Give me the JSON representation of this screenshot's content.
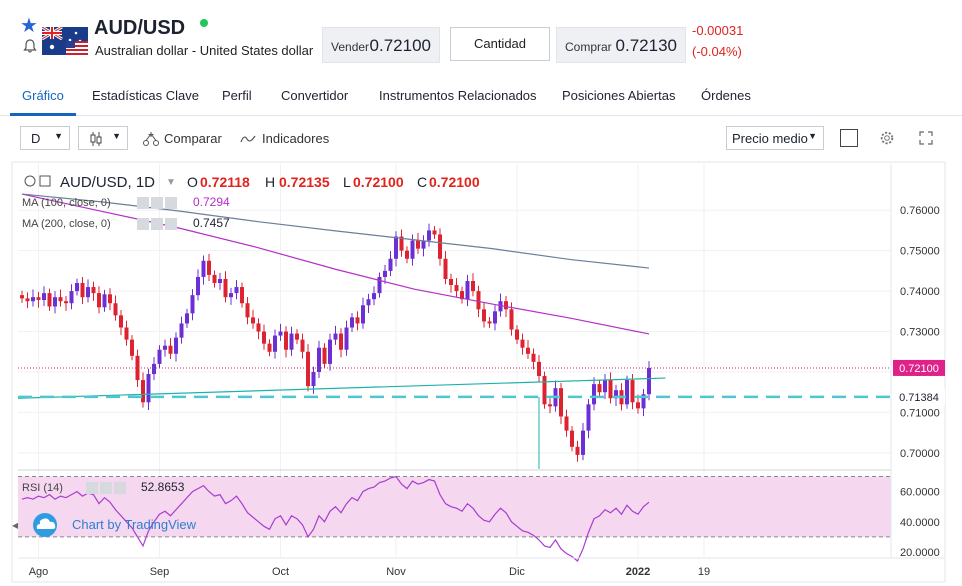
{
  "header": {
    "symbol": "AUD/USD",
    "description": "Australian dollar - United States dollar",
    "sell_label": "Vender",
    "sell_price": "0.72100",
    "quantity_label": "Cantidad",
    "buy_label": "Comprar",
    "buy_price": "0.72130",
    "change_abs": "-0.00031",
    "change_pct": "(-0.04%)",
    "icons": [
      "star-icon",
      "bell-icon",
      "australia-flag-icon",
      "live-status-dot"
    ]
  },
  "tabs": [
    {
      "label": "Gráfico",
      "active": true
    },
    {
      "label": "Estadísticas Clave"
    },
    {
      "label": "Perfil"
    },
    {
      "label": "Convertidor"
    },
    {
      "label": "Instrumentos Relacionados"
    },
    {
      "label": "Posiciones Abiertas"
    },
    {
      "label": "Órdenes"
    }
  ],
  "toolbar": {
    "interval": "D",
    "compare_label": "Comparar",
    "indicators_label": "Indicadores",
    "price_type": "Precio medio",
    "icons": [
      "candles-icon",
      "compare-icon",
      "indicators-icon",
      "gear-icon",
      "fullscreen-icon"
    ]
  },
  "legend": {
    "symbol": "AUD/USD, 1D",
    "o_label": "O",
    "o_val": "0.72118",
    "h_label": "H",
    "h_val": "0.72135",
    "l_label": "L",
    "l_val": "0.72100",
    "c_label": "C",
    "c_val": "0.72100",
    "ma100_label": "MA (100, close, 0)",
    "ma100_val": "0.7294",
    "ma200_label": "MA (200, close, 0)",
    "ma200_val": "0.7457",
    "rsi_label": "RSI (14)",
    "rsi_val": "52.8653"
  },
  "branding": "Chart by TradingView",
  "chart_data": {
    "type": "candlestick",
    "price_axis": [
      "0.76000",
      "0.75000",
      "0.74000",
      "0.73000",
      "0.72000",
      "0.71000",
      "0.70000"
    ],
    "price_ticks": [
      0.76,
      0.75,
      0.74,
      0.73,
      0.72,
      0.71,
      0.7
    ],
    "price_range": [
      0.697,
      0.765
    ],
    "last_price_label": "0.72100",
    "last_price": 0.721,
    "horizontal_line_label": "0.71384",
    "horizontal_line": 0.71384,
    "rsi_axis": [
      "60.0000",
      "40.0000",
      "20.0000"
    ],
    "rsi_ticks": [
      60,
      40,
      20
    ],
    "rsi_range": [
      16,
      73
    ],
    "rsi_bands": [
      70,
      30
    ],
    "time_axis": [
      {
        "label": "Ago",
        "i": 3
      },
      {
        "label": "Sep",
        "i": 25
      },
      {
        "label": "Oct",
        "i": 47
      },
      {
        "label": "Nov",
        "i": 68
      },
      {
        "label": "Dic",
        "i": 90
      },
      {
        "label": "2022",
        "i": 112
      },
      {
        "label": "19",
        "i": 124
      }
    ],
    "closes": [
      0.7382,
      0.7375,
      0.7385,
      0.7378,
      0.7395,
      0.7362,
      0.7385,
      0.7375,
      0.737,
      0.74,
      0.742,
      0.7385,
      0.741,
      0.7395,
      0.736,
      0.7392,
      0.737,
      0.734,
      0.731,
      0.728,
      0.724,
      0.718,
      0.7125,
      0.7195,
      0.722,
      0.7255,
      0.7265,
      0.7245,
      0.7285,
      0.732,
      0.7345,
      0.739,
      0.7435,
      0.7475,
      0.744,
      0.742,
      0.743,
      0.7385,
      0.7395,
      0.741,
      0.737,
      0.7335,
      0.732,
      0.73,
      0.727,
      0.725,
      0.729,
      0.73,
      0.7255,
      0.7295,
      0.728,
      0.725,
      0.7165,
      0.72,
      0.726,
      0.722,
      0.728,
      0.7295,
      0.7255,
      0.731,
      0.7335,
      0.732,
      0.7365,
      0.738,
      0.7395,
      0.7435,
      0.745,
      0.748,
      0.7535,
      0.75,
      0.748,
      0.7525,
      0.7505,
      0.7525,
      0.755,
      0.754,
      0.748,
      0.743,
      0.7415,
      0.74,
      0.738,
      0.7425,
      0.74,
      0.7355,
      0.7325,
      0.732,
      0.735,
      0.7375,
      0.7355,
      0.7305,
      0.728,
      0.726,
      0.7245,
      0.7225,
      0.719,
      0.712,
      0.7115,
      0.716,
      0.709,
      0.7055,
      0.7015,
      0.6995,
      0.7055,
      0.712,
      0.717,
      0.715,
      0.718,
      0.7135,
      0.7155,
      0.712,
      0.718,
      0.7125,
      0.711,
      0.7145,
      0.721
    ],
    "ma100": [
      0.764,
      0.7598,
      0.7556,
      0.7508,
      0.7454,
      0.7405,
      0.7368,
      0.7333,
      0.7294
    ],
    "ma200": [
      0.764,
      0.7621,
      0.7598,
      0.7572,
      0.7549,
      0.7527,
      0.7505,
      0.7478,
      0.7457
    ],
    "trendline": [
      0.7135,
      0.7185
    ],
    "rsi": [
      55,
      56,
      55,
      57,
      56,
      58,
      55,
      57,
      56,
      58,
      60,
      57,
      59,
      58,
      52,
      56,
      53,
      48,
      44,
      40,
      36,
      30,
      24,
      34,
      40,
      45,
      47,
      44,
      48,
      52,
      56,
      60,
      62,
      64,
      60,
      57,
      58,
      52,
      54,
      57,
      52,
      46,
      43,
      40,
      37,
      35,
      42,
      44,
      38,
      44,
      42,
      38,
      30,
      35,
      44,
      40,
      47,
      50,
      46,
      52,
      56,
      54,
      60,
      62,
      63,
      66,
      67,
      69,
      70,
      65,
      62,
      67,
      65,
      66,
      68,
      67,
      58,
      52,
      50,
      49,
      47,
      52,
      49,
      44,
      41,
      40,
      45,
      49,
      46,
      40,
      37,
      34,
      33,
      31,
      28,
      24,
      23,
      28,
      22,
      19,
      17,
      14,
      22,
      33,
      42,
      44,
      48,
      46,
      49,
      45,
      51,
      47,
      45,
      50,
      53
    ]
  }
}
